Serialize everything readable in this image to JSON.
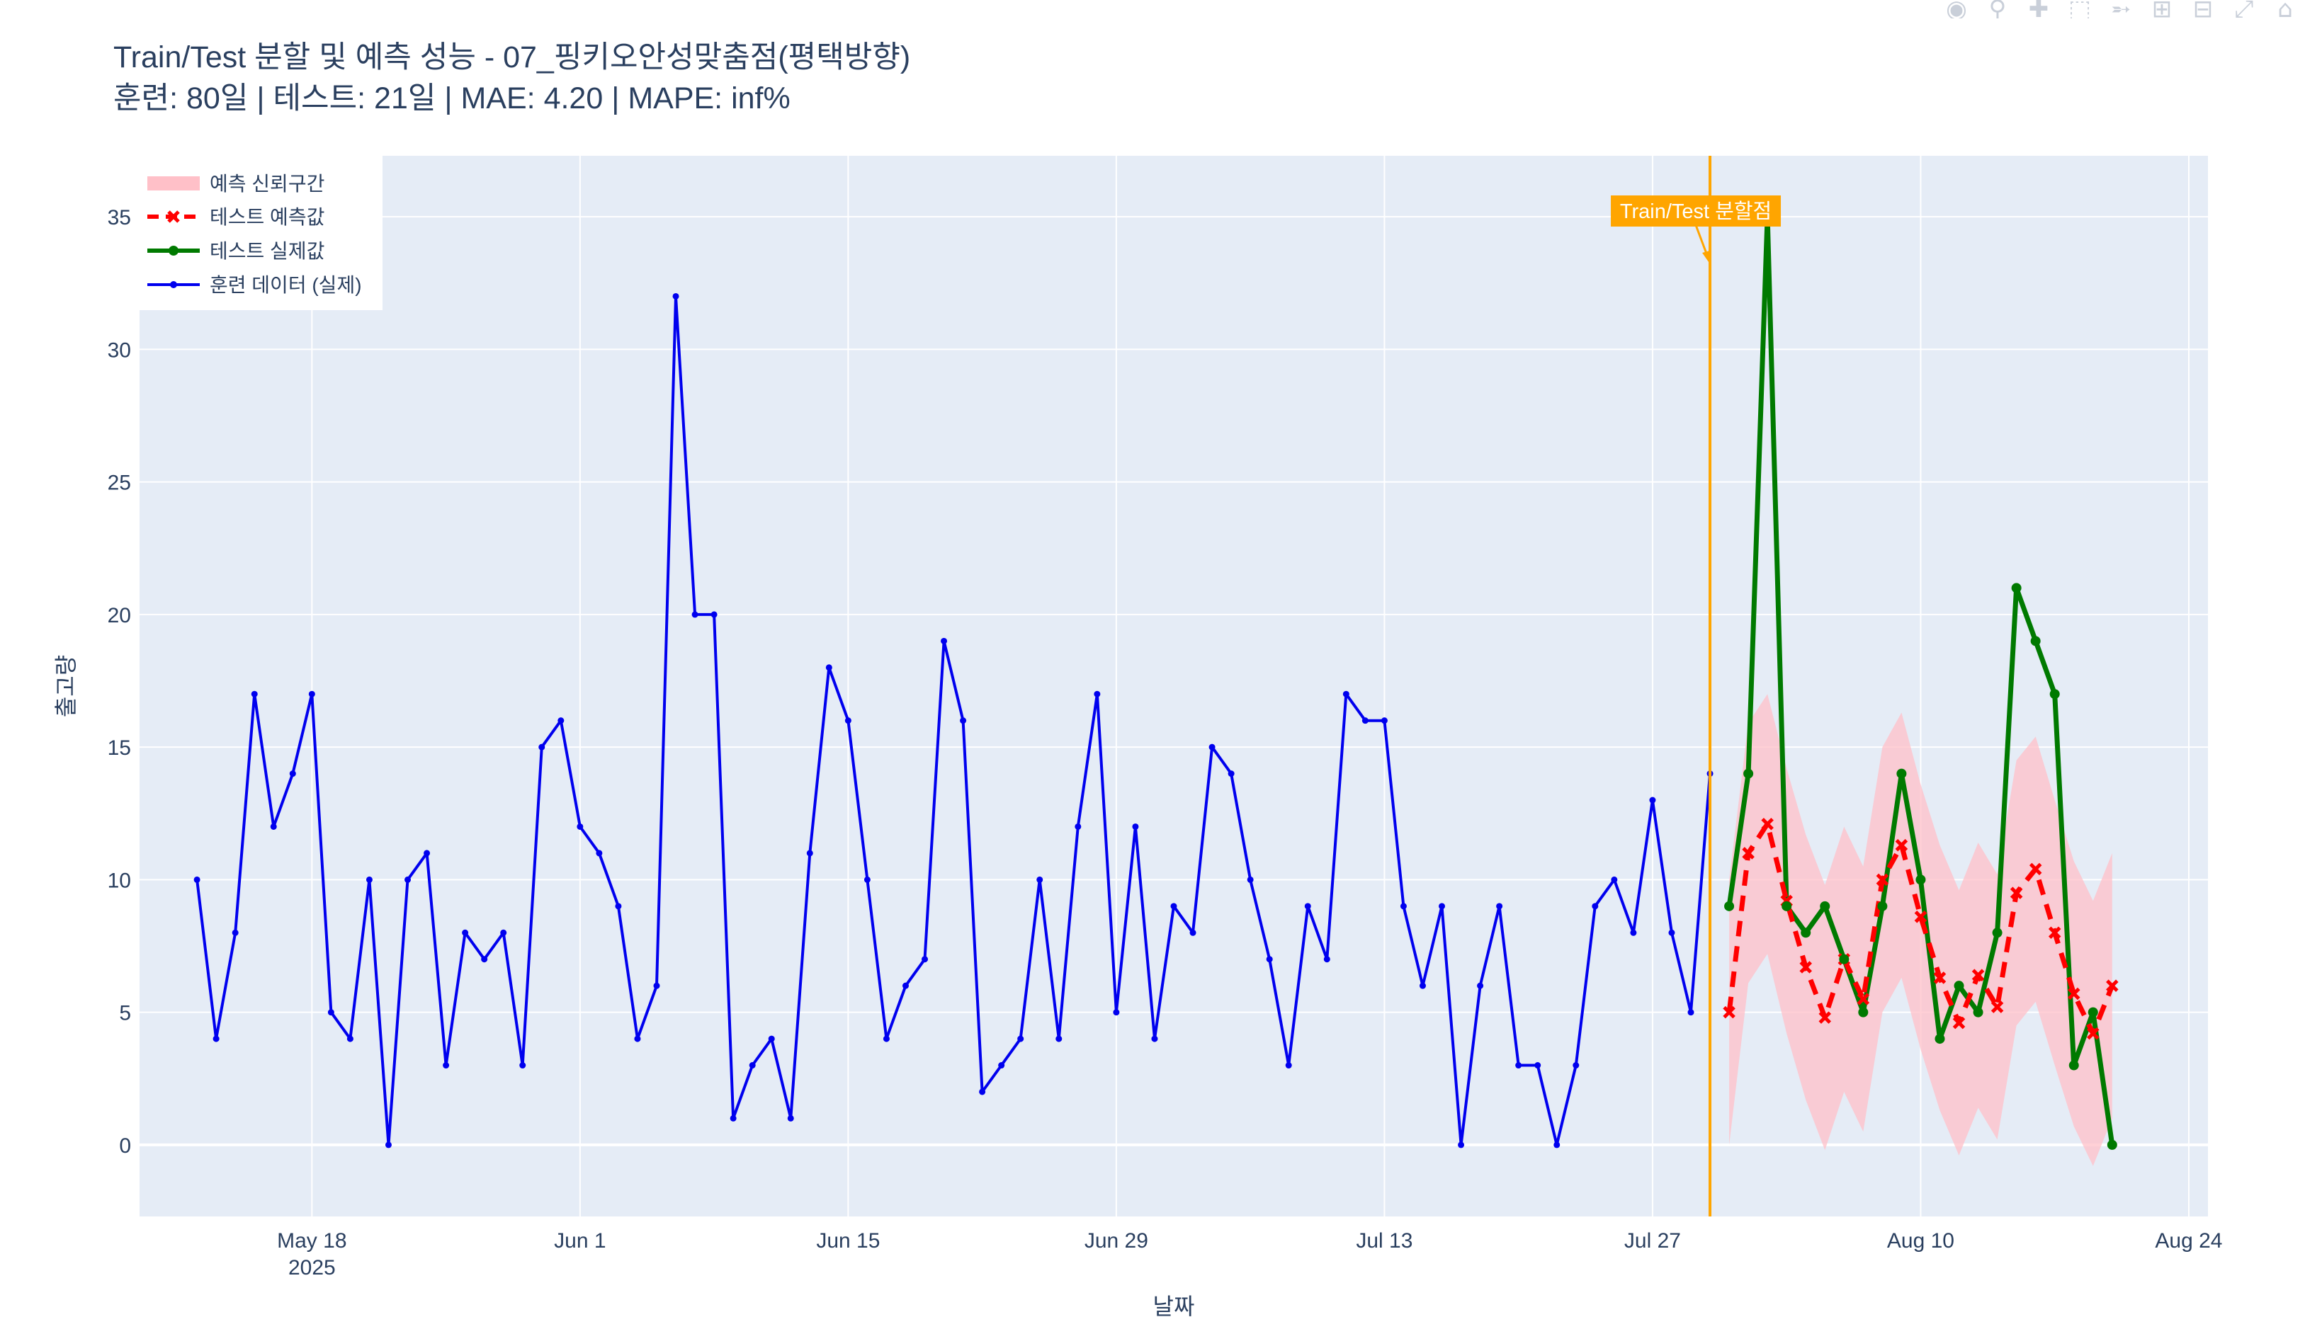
{
  "title": "Train/Test 분할 및 예측 성능 - 07_핑키오안성맞춤점(평택방향)",
  "subtitle": "훈련: 80일 | 테스트: 21일 | MAE: 4.20 | MAPE: inf%",
  "modebar_icons": [
    "camera-icon",
    "zoom-icon",
    "pan-icon",
    "box-select-icon",
    "lasso-icon",
    "zoom-in-icon",
    "zoom-out-icon",
    "autoscale-icon",
    "home-icon"
  ],
  "colors": {
    "plot_bg": "#e5ecf6",
    "train": "#0000ee",
    "test_actual": "#007a00",
    "test_pred": "#ff0000",
    "confidence": "#ffc0c8",
    "split_line": "#ffa500"
  },
  "chart_data": {
    "type": "line",
    "xlabel": "날짜",
    "ylabel": "출고량",
    "xlim": [
      "2025-05-09",
      "2025-08-25"
    ],
    "ylim": [
      -2.7,
      37.3
    ],
    "grid": true,
    "legend_position": "top-left",
    "x_ticks": [
      {
        "date": "2025-05-18",
        "label": "May 18",
        "sublabel": "2025"
      },
      {
        "date": "2025-06-01",
        "label": "Jun 1",
        "sublabel": ""
      },
      {
        "date": "2025-06-15",
        "label": "Jun 15",
        "sublabel": ""
      },
      {
        "date": "2025-06-29",
        "label": "Jun 29",
        "sublabel": ""
      },
      {
        "date": "2025-07-13",
        "label": "Jul 13",
        "sublabel": ""
      },
      {
        "date": "2025-07-27",
        "label": "Jul 27",
        "sublabel": ""
      },
      {
        "date": "2025-08-10",
        "label": "Aug 10",
        "sublabel": ""
      },
      {
        "date": "2025-08-24",
        "label": "Aug 24",
        "sublabel": ""
      }
    ],
    "y_ticks": [
      0,
      5,
      10,
      15,
      20,
      25,
      30,
      35
    ],
    "legend": [
      "예측 신뢰구간",
      "테스트 예측값",
      "테스트 실제값",
      "훈련 데이터 (실제)"
    ],
    "split": {
      "date": "2025-07-30",
      "label": "Train/Test 분할점"
    },
    "series": [
      {
        "name": "훈련 데이터 (실제)",
        "start": "2025-05-12",
        "values": [
          10,
          4,
          8,
          17,
          12,
          14,
          17,
          5,
          4,
          10,
          0,
          10,
          11,
          3,
          8,
          7,
          8,
          3,
          15,
          16,
          12,
          11,
          9,
          4,
          6,
          32,
          20,
          20,
          1,
          3,
          4,
          1,
          11,
          18,
          16,
          10,
          4,
          6,
          7,
          19,
          16,
          2,
          3,
          4,
          10,
          4,
          12,
          17,
          5,
          12,
          4,
          9,
          8,
          15,
          14,
          10,
          7,
          3,
          9,
          7,
          17,
          16,
          16,
          9,
          6,
          9,
          0,
          6,
          9,
          3,
          3,
          0,
          3,
          9,
          10,
          8,
          13,
          8,
          5,
          14
        ]
      },
      {
        "name": "테스트 실제값",
        "start": "2025-07-31",
        "values": [
          9,
          14,
          35,
          9,
          8,
          9,
          7,
          5,
          9,
          14,
          10,
          4,
          6,
          5,
          8,
          21,
          19,
          17,
          3,
          5,
          0
        ]
      },
      {
        "name": "테스트 예측값",
        "start": "2025-07-31",
        "values": [
          5,
          11,
          12.1,
          9.2,
          6.7,
          4.8,
          7,
          5.5,
          10,
          11.3,
          8.6,
          6.3,
          4.6,
          6.4,
          5.2,
          9.5,
          10.4,
          8,
          5.7,
          4.2,
          6
        ]
      },
      {
        "name": "예측 신뢰구간",
        "start": "2025-07-31",
        "upper": [
          10,
          15.9,
          17,
          14.2,
          11.7,
          9.8,
          12,
          10.5,
          15,
          16.3,
          13.6,
          11.3,
          9.6,
          11.4,
          10.2,
          14.5,
          15.4,
          13,
          10.7,
          9.2,
          11
        ],
        "lower": [
          0,
          6.1,
          7.2,
          4.2,
          1.7,
          -0.2,
          2,
          0.5,
          5,
          6.3,
          3.6,
          1.3,
          -0.4,
          1.4,
          0.2,
          4.5,
          5.4,
          3,
          0.7,
          -0.8,
          1
        ]
      }
    ]
  }
}
